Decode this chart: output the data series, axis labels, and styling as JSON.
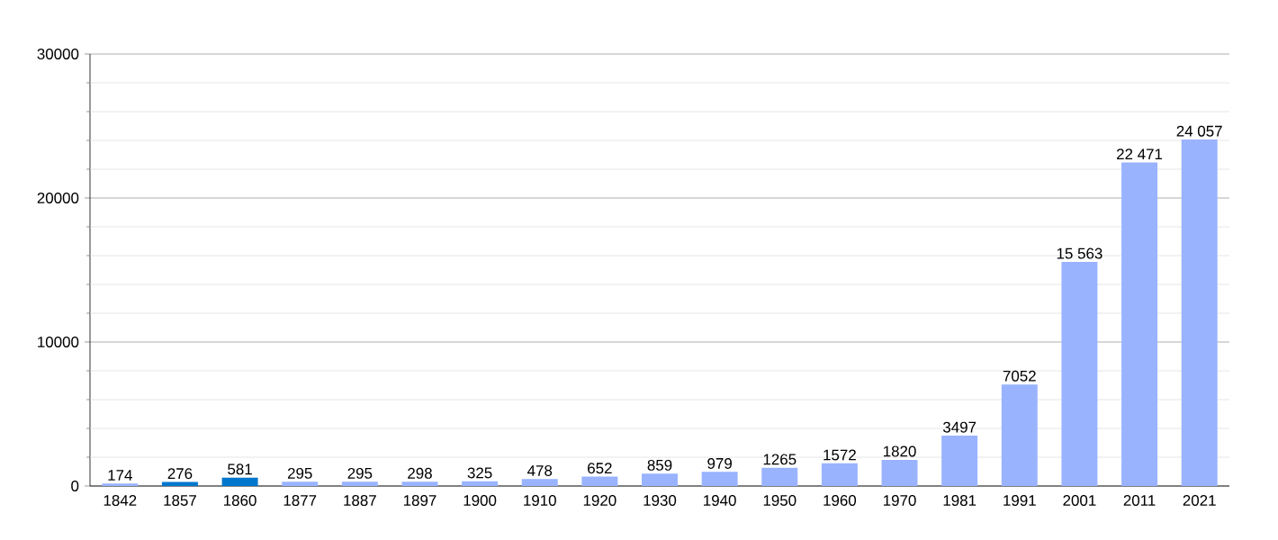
{
  "chart_data": {
    "type": "bar",
    "categories": [
      "1842",
      "1857",
      "1860",
      "1877",
      "1887",
      "1897",
      "1900",
      "1910",
      "1920",
      "1930",
      "1940",
      "1950",
      "1960",
      "1970",
      "1981",
      "1991",
      "2001",
      "2011",
      "2021"
    ],
    "values": [
      174,
      276,
      581,
      295,
      295,
      298,
      325,
      478,
      652,
      859,
      979,
      1265,
      1572,
      1820,
      3497,
      7052,
      15563,
      22471,
      24057
    ],
    "colors": [
      "#99b3ff",
      "#0077cc",
      "#0077cc",
      "#99b3ff",
      "#99b3ff",
      "#99b3ff",
      "#99b3ff",
      "#99b3ff",
      "#99b3ff",
      "#99b3ff",
      "#99b3ff",
      "#99b3ff",
      "#99b3ff",
      "#99b3ff",
      "#99b3ff",
      "#99b3ff",
      "#99b3ff",
      "#99b3ff",
      "#99b3ff"
    ],
    "value_labels": [
      "174",
      "276",
      "581",
      "295",
      "295",
      "298",
      "325",
      "478",
      "652",
      "859",
      "979",
      "1265",
      "1572",
      "1820",
      "3497",
      "7052",
      "15 563",
      "22 471",
      "24 057"
    ],
    "ylim": [
      0,
      30000
    ],
    "yticks": [
      0,
      {
        "value": 2000,
        "label": null
      },
      {
        "value": 4000,
        "label": null
      },
      {
        "value": 6000,
        "label": null
      },
      {
        "value": 8000,
        "label": null
      },
      10000,
      {
        "value": 12000,
        "label": null
      },
      {
        "value": 14000,
        "label": null
      },
      {
        "value": 16000,
        "label": null
      },
      {
        "value": 18000,
        "label": null
      },
      20000,
      {
        "value": 22000,
        "label": null
      },
      {
        "value": 24000,
        "label": null
      },
      {
        "value": 26000,
        "label": null
      },
      {
        "value": 28000,
        "label": null
      },
      30000
    ],
    "grid": "y"
  }
}
